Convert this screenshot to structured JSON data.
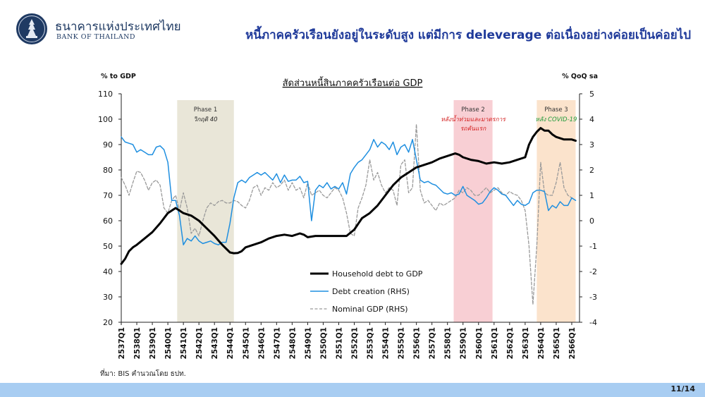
{
  "header": {
    "bank_name_th": "ธนาคารแห่งประเทศไทย",
    "bank_name_en": "BANK OF THAILAND",
    "slide_title": "หนี้ภาคครัวเรือนยังอยู่ในระดับสูง แต่มีการ deleverage ต่อเนื่องอย่างค่อยเป็นค่อยไป"
  },
  "footer": {
    "source_note": "ที่มา: BIS คำนวณโดย ธปท.",
    "page_number": "11/14"
  },
  "colors": {
    "household": "#000000",
    "debt_creation": "#1f8fe0",
    "nominal_gdp": "#9a9a9a",
    "phase1_band": "#e9e6d8",
    "phase2_band": "#f8cfd4",
    "phase3_band": "#fbe3cc",
    "title": "#1f3a9a",
    "bottom_bar": "#a8cdf2"
  },
  "chart_data": {
    "type": "line",
    "title": "สัดส่วนหนี้สินภาคครัวเรือนต่อ GDP",
    "ylabel_left": "% to GDP",
    "ylabel_right": "% QoQ sa",
    "ylim_left": [
      20,
      110
    ],
    "yticks_left": [
      "110",
      "100",
      "90",
      "80",
      "70",
      "60",
      "50",
      "40",
      "30",
      "20"
    ],
    "ylim_right": [
      -4,
      5
    ],
    "yticks_right": [
      "5",
      "4",
      "3",
      "2",
      "1",
      "0",
      "-1",
      "-2",
      "-3",
      "-4"
    ],
    "x_range": [
      2537,
      2566.5
    ],
    "x_ticks": [
      "2537Q1",
      "2538Q1",
      "2539Q1",
      "2540Q1",
      "2541Q1",
      "2542Q1",
      "2543Q1",
      "2544Q1",
      "2545Q1",
      "2546Q1",
      "2547Q1",
      "2548Q1",
      "2549Q1",
      "2550Q1",
      "2551Q1",
      "2552Q1",
      "2553Q1",
      "2554Q1",
      "2555Q1",
      "2556Q1",
      "2557Q1",
      "2558Q1",
      "2559Q1",
      "2560Q1",
      "2561Q1",
      "2562Q1",
      "2563Q1",
      "2564Q1",
      "2565Q1",
      "2566Q1"
    ],
    "grid": false,
    "legend_position": "bottom-center",
    "phases": [
      {
        "label": "Phase 1",
        "sublabel": "วิกฤติ 40",
        "x_start": 2540.6,
        "x_end": 2544.25,
        "label_color": "#333333",
        "sublabel_color": "#222222"
      },
      {
        "label": "Phase 2",
        "sublabel_lines": [
          "หลังน้ำท่วมและมาตรการ",
          "รถคันแรก"
        ],
        "x_start": 2558.4,
        "x_end": 2560.9,
        "label_color": "#333333",
        "sublabel_color": "#d42020"
      },
      {
        "label": "Phase 3",
        "sublabel": "หลัง COVID-19",
        "x_start": 2563.75,
        "x_end": 2566.25,
        "label_color": "#333333",
        "sublabel_color": "#1f9a3a"
      }
    ],
    "series": [
      {
        "name": "Household debt to GDP",
        "axis": "left",
        "style": "solid-thick",
        "x": [
          2537.0,
          2537.25,
          2537.5,
          2537.75,
          2538.0,
          2538.5,
          2539.0,
          2539.5,
          2540.0,
          2540.5,
          2540.75,
          2541.0,
          2541.5,
          2542.0,
          2542.5,
          2543.0,
          2543.5,
          2544.0,
          2544.25,
          2544.5,
          2544.75,
          2545.0,
          2545.5,
          2546.0,
          2546.5,
          2547.0,
          2547.5,
          2548.0,
          2548.5,
          2548.75,
          2549.0,
          2549.5,
          2550.0,
          2550.5,
          2551.0,
          2551.5,
          2552.0,
          2552.5,
          2553.0,
          2553.5,
          2554.0,
          2554.5,
          2555.0,
          2555.5,
          2556.0,
          2556.5,
          2557.0,
          2557.5,
          2558.0,
          2558.5,
          2558.75,
          2559.0,
          2559.5,
          2560.0,
          2560.5,
          2561.0,
          2561.5,
          2562.0,
          2562.5,
          2563.0,
          2563.25,
          2563.5,
          2563.75,
          2564.0,
          2564.25,
          2564.5,
          2564.75,
          2565.0,
          2565.5,
          2566.0,
          2566.25
        ],
        "y": [
          43,
          45,
          48,
          49.5,
          50.5,
          53,
          55.5,
          59,
          63,
          65,
          64,
          63,
          62,
          60,
          57,
          54,
          50.5,
          47.5,
          47.2,
          47.3,
          48,
          49.5,
          50.5,
          51.5,
          53,
          54,
          54.5,
          54,
          55,
          54.5,
          53.5,
          54,
          54,
          54,
          54,
          54,
          56.5,
          61,
          63,
          66,
          70,
          74,
          77,
          79,
          81,
          82,
          83,
          84.5,
          85.5,
          86.5,
          86,
          85,
          84,
          83.5,
          82.5,
          83,
          82.5,
          83,
          84,
          85,
          90,
          93,
          95,
          96.5,
          95.5,
          95.5,
          94,
          93,
          92,
          92,
          91.5
        ]
      },
      {
        "name": "Debt creation (RHS)",
        "axis": "right",
        "style": "solid-thin",
        "x": [
          2537.0,
          2537.25,
          2537.5,
          2537.75,
          2538.0,
          2538.25,
          2538.5,
          2538.75,
          2539.0,
          2539.25,
          2539.5,
          2539.75,
          2540.0,
          2540.25,
          2540.5,
          2540.75,
          2541.0,
          2541.25,
          2541.5,
          2541.75,
          2542.0,
          2542.25,
          2542.5,
          2542.75,
          2543.0,
          2543.25,
          2543.5,
          2543.75,
          2544.0,
          2544.25,
          2544.5,
          2544.75,
          2545.0,
          2545.25,
          2545.5,
          2545.75,
          2546.0,
          2546.25,
          2546.5,
          2546.75,
          2547.0,
          2547.25,
          2547.5,
          2547.75,
          2548.0,
          2548.25,
          2548.5,
          2548.75,
          2549.0,
          2549.25,
          2549.5,
          2549.75,
          2550.0,
          2550.25,
          2550.5,
          2550.75,
          2551.0,
          2551.25,
          2551.5,
          2551.75,
          2552.0,
          2552.25,
          2552.5,
          2552.75,
          2553.0,
          2553.25,
          2553.5,
          2553.75,
          2554.0,
          2554.25,
          2554.5,
          2554.75,
          2555.0,
          2555.25,
          2555.5,
          2555.75,
          2556.0,
          2556.25,
          2556.5,
          2556.75,
          2557.0,
          2557.25,
          2557.5,
          2557.75,
          2558.0,
          2558.25,
          2558.5,
          2558.75,
          2559.0,
          2559.25,
          2559.5,
          2559.75,
          2560.0,
          2560.25,
          2560.5,
          2560.75,
          2561.0,
          2561.25,
          2561.5,
          2561.75,
          2562.0,
          2562.25,
          2562.5,
          2562.75,
          2563.0,
          2563.25,
          2563.5,
          2563.75,
          2564.0,
          2564.25,
          2564.5,
          2564.75,
          2565.0,
          2565.25,
          2565.5,
          2565.75,
          2566.0,
          2566.25
        ],
        "y": [
          3.3,
          3.1,
          3.05,
          3.0,
          2.7,
          2.8,
          2.7,
          2.6,
          2.6,
          2.9,
          2.95,
          2.8,
          2.3,
          0.8,
          0.8,
          0.2,
          -0.95,
          -0.7,
          -0.8,
          -0.6,
          -0.8,
          -0.9,
          -0.85,
          -0.8,
          -0.9,
          -0.95,
          -0.85,
          -0.85,
          -0.1,
          0.9,
          1.5,
          1.6,
          1.5,
          1.7,
          1.8,
          1.9,
          1.8,
          1.9,
          1.75,
          1.6,
          1.85,
          1.5,
          1.8,
          1.55,
          1.6,
          1.6,
          1.75,
          1.5,
          1.55,
          0.0,
          1.2,
          1.4,
          1.3,
          1.5,
          1.25,
          1.35,
          1.25,
          1.5,
          1.05,
          1.85,
          2.1,
          2.3,
          2.4,
          2.6,
          2.8,
          3.2,
          2.9,
          3.1,
          3.0,
          2.8,
          3.1,
          2.6,
          2.9,
          3.0,
          2.7,
          3.2,
          2.4,
          1.6,
          1.5,
          1.55,
          1.45,
          1.4,
          1.25,
          1.1,
          1.05,
          1.1,
          1.0,
          1.05,
          1.35,
          1.0,
          0.9,
          0.8,
          0.65,
          0.7,
          0.9,
          1.15,
          1.3,
          1.2,
          1.05,
          1.0,
          0.8,
          0.6,
          0.8,
          0.65,
          0.6,
          0.7,
          1.1,
          1.2,
          1.2,
          1.15,
          0.4,
          0.6,
          0.5,
          0.75,
          0.6,
          0.6,
          0.9,
          0.8
        ]
      },
      {
        "name": "Nominal GDP (RHS)",
        "axis": "right",
        "style": "dashed",
        "x": [
          2537.0,
          2537.25,
          2537.5,
          2537.75,
          2538.0,
          2538.25,
          2538.5,
          2538.75,
          2539.0,
          2539.25,
          2539.5,
          2539.75,
          2540.0,
          2540.25,
          2540.5,
          2540.75,
          2541.0,
          2541.25,
          2541.5,
          2541.75,
          2542.0,
          2542.25,
          2542.5,
          2542.75,
          2543.0,
          2543.25,
          2543.5,
          2543.75,
          2544.0,
          2544.25,
          2544.5,
          2544.75,
          2545.0,
          2545.25,
          2545.5,
          2545.75,
          2546.0,
          2546.25,
          2546.5,
          2546.75,
          2547.0,
          2547.25,
          2547.5,
          2547.75,
          2548.0,
          2548.25,
          2548.5,
          2548.75,
          2549.0,
          2549.25,
          2549.5,
          2549.75,
          2550.0,
          2550.25,
          2550.5,
          2550.75,
          2551.0,
          2551.25,
          2551.5,
          2551.75,
          2552.0,
          2552.25,
          2552.5,
          2552.75,
          2553.0,
          2553.25,
          2553.5,
          2553.75,
          2554.0,
          2554.25,
          2554.5,
          2554.75,
          2555.0,
          2555.25,
          2555.5,
          2555.75,
          2556.0,
          2556.25,
          2556.5,
          2556.75,
          2557.0,
          2557.25,
          2557.5,
          2557.75,
          2558.0,
          2558.25,
          2558.5,
          2558.75,
          2559.0,
          2559.25,
          2559.5,
          2559.75,
          2560.0,
          2560.25,
          2560.5,
          2560.75,
          2561.0,
          2561.25,
          2561.5,
          2561.75,
          2562.0,
          2562.25,
          2562.5,
          2562.75,
          2563.0,
          2563.25,
          2563.5,
          2563.75,
          2564.0,
          2564.25,
          2564.5,
          2564.75,
          2565.0,
          2565.25,
          2565.5,
          2565.75,
          2566.0,
          2566.25
        ],
        "y": [
          1.7,
          1.4,
          1.0,
          1.5,
          1.95,
          1.9,
          1.6,
          1.2,
          1.5,
          1.6,
          1.4,
          0.5,
          0.3,
          0.8,
          1.0,
          0.4,
          1.1,
          0.5,
          -0.5,
          -0.3,
          -0.6,
          0.0,
          0.5,
          0.7,
          0.6,
          0.75,
          0.8,
          0.7,
          0.7,
          0.8,
          0.75,
          0.6,
          0.5,
          0.8,
          1.3,
          1.4,
          1.0,
          1.3,
          1.2,
          1.5,
          1.3,
          1.4,
          1.6,
          1.2,
          1.5,
          1.2,
          1.3,
          0.9,
          1.5,
          1.0,
          1.1,
          1.2,
          1.0,
          0.9,
          1.1,
          1.3,
          1.2,
          0.9,
          0.3,
          -0.5,
          -0.6,
          0.5,
          0.9,
          1.4,
          2.4,
          1.6,
          1.9,
          1.4,
          1.1,
          1.3,
          1.2,
          0.6,
          2.2,
          2.4,
          1.1,
          1.3,
          3.8,
          1.2,
          0.7,
          0.8,
          0.6,
          0.4,
          0.7,
          0.6,
          0.7,
          0.8,
          0.9,
          1.2,
          1.1,
          1.3,
          1.2,
          1.0,
          1.0,
          1.15,
          1.3,
          1.1,
          1.2,
          1.3,
          1.1,
          1.0,
          1.15,
          1.05,
          1.0,
          0.8,
          0.4,
          -1.0,
          -3.3,
          -1.0,
          2.3,
          1.1,
          1.0,
          1.0,
          1.5,
          2.3,
          1.3,
          1.0,
          0.9,
          0.8
        ]
      }
    ]
  }
}
